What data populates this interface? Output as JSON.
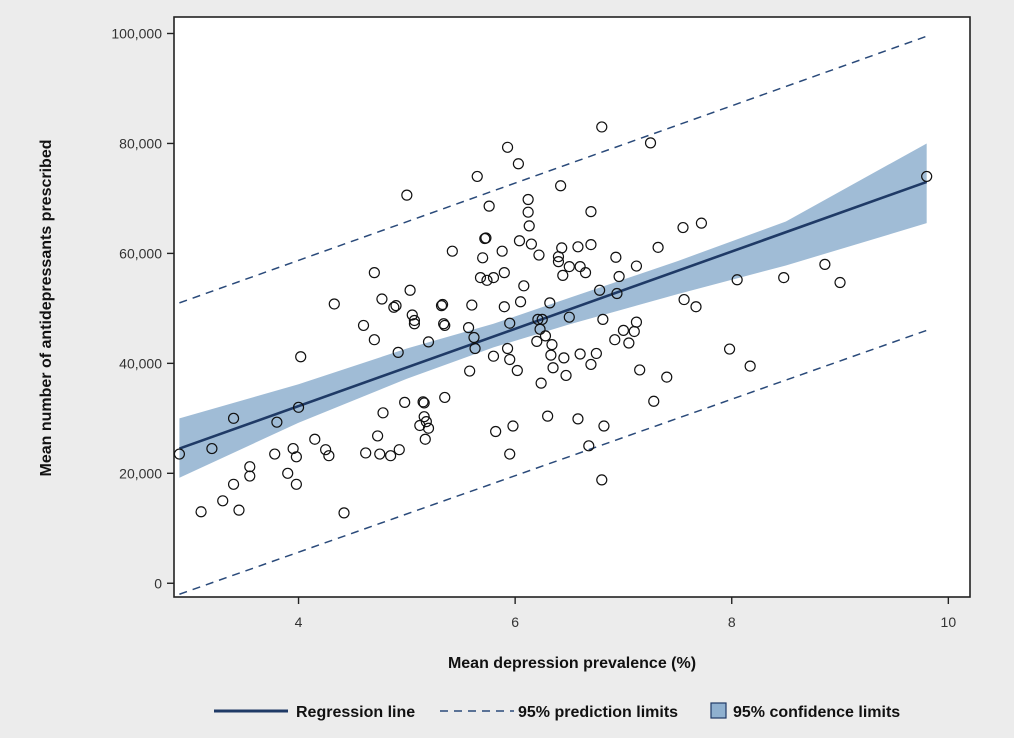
{
  "chart_data": {
    "type": "scatter",
    "title": "",
    "xlabel": "Mean depression prevalence (%)",
    "ylabel": "Mean number of antidepressants prescribed",
    "xlim": [
      2.85,
      10.2
    ],
    "ylim": [
      -2500,
      103000
    ],
    "x_ticks": [
      4,
      6,
      8,
      10
    ],
    "y_ticks": [
      0,
      20000,
      40000,
      60000,
      80000,
      100000
    ],
    "x_tick_labels": [
      "4",
      "6",
      "8",
      "10"
    ],
    "y_tick_labels": [
      "0",
      "20,000",
      "40,000",
      "60,000",
      "80,000",
      "100,000"
    ],
    "grid": false,
    "legend_position": "bottom",
    "colors": {
      "regression": "#1f3a66",
      "prediction": "#2a4a7a",
      "confidence_fill": "#8fb0cf",
      "point_stroke": "#111111"
    },
    "legend": {
      "regression_label": "Regression line",
      "prediction_label": "95% prediction limits",
      "confidence_label": "95% confidence limits"
    },
    "regression_line": {
      "x": [
        2.9,
        9.8
      ],
      "y": [
        24500,
        73000
      ]
    },
    "prediction_upper": {
      "x": [
        2.9,
        9.8
      ],
      "y": [
        51000,
        99500
      ]
    },
    "prediction_lower": {
      "x": [
        2.9,
        9.8
      ],
      "y": [
        -2000,
        46000
      ]
    },
    "confidence_band": {
      "x": [
        2.9,
        4.0,
        5.0,
        5.8,
        6.5,
        7.5,
        8.5,
        9.8
      ],
      "upper": [
        30000,
        36200,
        42700,
        47200,
        51900,
        58600,
        65800,
        80000
      ],
      "lower": [
        19200,
        29200,
        37200,
        42900,
        47100,
        52600,
        57800,
        65500
      ]
    },
    "points": [
      [
        2.9,
        23500
      ],
      [
        3.1,
        13000
      ],
      [
        3.2,
        24500
      ],
      [
        3.3,
        15000
      ],
      [
        3.4,
        18000
      ],
      [
        3.4,
        30000
      ],
      [
        3.45,
        13300
      ],
      [
        3.55,
        19500
      ],
      [
        3.55,
        21200
      ],
      [
        3.8,
        29300
      ],
      [
        3.78,
        23500
      ],
      [
        3.9,
        20000
      ],
      [
        3.95,
        24500
      ],
      [
        3.98,
        18000
      ],
      [
        3.98,
        23000
      ],
      [
        4.0,
        32000
      ],
      [
        4.02,
        41200
      ],
      [
        4.15,
        26200
      ],
      [
        4.25,
        24300
      ],
      [
        4.28,
        23200
      ],
      [
        4.33,
        50800
      ],
      [
        4.42,
        12800
      ],
      [
        4.6,
        46900
      ],
      [
        4.62,
        23700
      ],
      [
        4.7,
        56500
      ],
      [
        4.7,
        44300
      ],
      [
        4.73,
        26800
      ],
      [
        4.75,
        23500
      ],
      [
        4.77,
        51700
      ],
      [
        4.78,
        31000
      ],
      [
        4.85,
        23200
      ],
      [
        4.88,
        50200
      ],
      [
        4.9,
        50500
      ],
      [
        4.92,
        42000
      ],
      [
        4.93,
        24300
      ],
      [
        4.98,
        32900
      ],
      [
        5.0,
        70600
      ],
      [
        5.03,
        53300
      ],
      [
        5.05,
        48800
      ],
      [
        5.07,
        47800
      ],
      [
        5.07,
        47200
      ],
      [
        5.12,
        28700
      ],
      [
        5.15,
        33000
      ],
      [
        5.16,
        32800
      ],
      [
        5.16,
        30300
      ],
      [
        5.17,
        26200
      ],
      [
        5.18,
        29400
      ],
      [
        5.2,
        43900
      ],
      [
        5.2,
        28200
      ],
      [
        5.32,
        50500
      ],
      [
        5.33,
        50700
      ],
      [
        5.34,
        47200
      ],
      [
        5.35,
        46900
      ],
      [
        5.35,
        33800
      ],
      [
        5.42,
        60400
      ],
      [
        5.57,
        46500
      ],
      [
        5.58,
        38600
      ],
      [
        5.6,
        50600
      ],
      [
        5.62,
        44700
      ],
      [
        5.63,
        42700
      ],
      [
        5.65,
        74000
      ],
      [
        5.68,
        55600
      ],
      [
        5.7,
        59200
      ],
      [
        5.72,
        62700
      ],
      [
        5.73,
        62800
      ],
      [
        5.74,
        55100
      ],
      [
        5.76,
        68600
      ],
      [
        5.8,
        55600
      ],
      [
        5.8,
        41300
      ],
      [
        5.82,
        27600
      ],
      [
        5.88,
        60400
      ],
      [
        5.9,
        50300
      ],
      [
        5.9,
        56500
      ],
      [
        5.93,
        79300
      ],
      [
        5.93,
        42700
      ],
      [
        5.95,
        47300
      ],
      [
        5.95,
        40700
      ],
      [
        5.95,
        23500
      ],
      [
        5.98,
        28600
      ],
      [
        6.02,
        38700
      ],
      [
        6.03,
        76300
      ],
      [
        6.04,
        62300
      ],
      [
        6.05,
        51200
      ],
      [
        6.08,
        54100
      ],
      [
        6.12,
        69800
      ],
      [
        6.12,
        67500
      ],
      [
        6.13,
        65000
      ],
      [
        6.15,
        61700
      ],
      [
        6.2,
        44000
      ],
      [
        6.21,
        48000
      ],
      [
        6.22,
        59700
      ],
      [
        6.23,
        46200
      ],
      [
        6.24,
        36400
      ],
      [
        6.25,
        48000
      ],
      [
        6.28,
        45000
      ],
      [
        6.3,
        30400
      ],
      [
        6.32,
        51000
      ],
      [
        6.33,
        41500
      ],
      [
        6.34,
        43400
      ],
      [
        6.35,
        39200
      ],
      [
        6.4,
        58500
      ],
      [
        6.4,
        59400
      ],
      [
        6.42,
        72300
      ],
      [
        6.43,
        61000
      ],
      [
        6.44,
        56000
      ],
      [
        6.45,
        41000
      ],
      [
        6.47,
        37800
      ],
      [
        6.5,
        57600
      ],
      [
        6.5,
        48400
      ],
      [
        6.58,
        61200
      ],
      [
        6.58,
        29900
      ],
      [
        6.6,
        57600
      ],
      [
        6.6,
        41700
      ],
      [
        6.65,
        56500
      ],
      [
        6.68,
        25000
      ],
      [
        6.7,
        39800
      ],
      [
        6.7,
        67600
      ],
      [
        6.7,
        61600
      ],
      [
        6.75,
        41800
      ],
      [
        6.78,
        53300
      ],
      [
        6.8,
        83000
      ],
      [
        6.8,
        18800
      ],
      [
        6.81,
        48000
      ],
      [
        6.82,
        28600
      ],
      [
        6.92,
        44300
      ],
      [
        6.93,
        59300
      ],
      [
        6.94,
        52700
      ],
      [
        6.96,
        55800
      ],
      [
        7.0,
        46000
      ],
      [
        7.05,
        43700
      ],
      [
        7.1,
        45800
      ],
      [
        7.12,
        57700
      ],
      [
        7.12,
        47500
      ],
      [
        7.15,
        38800
      ],
      [
        7.25,
        80100
      ],
      [
        7.28,
        33100
      ],
      [
        7.32,
        61100
      ],
      [
        7.4,
        37500
      ],
      [
        7.55,
        64700
      ],
      [
        7.56,
        51600
      ],
      [
        7.67,
        50300
      ],
      [
        7.72,
        65500
      ],
      [
        7.98,
        42600
      ],
      [
        8.05,
        55200
      ],
      [
        8.17,
        39500
      ],
      [
        8.48,
        55600
      ],
      [
        8.86,
        58000
      ],
      [
        9.0,
        54700
      ],
      [
        9.8,
        74000
      ]
    ]
  }
}
